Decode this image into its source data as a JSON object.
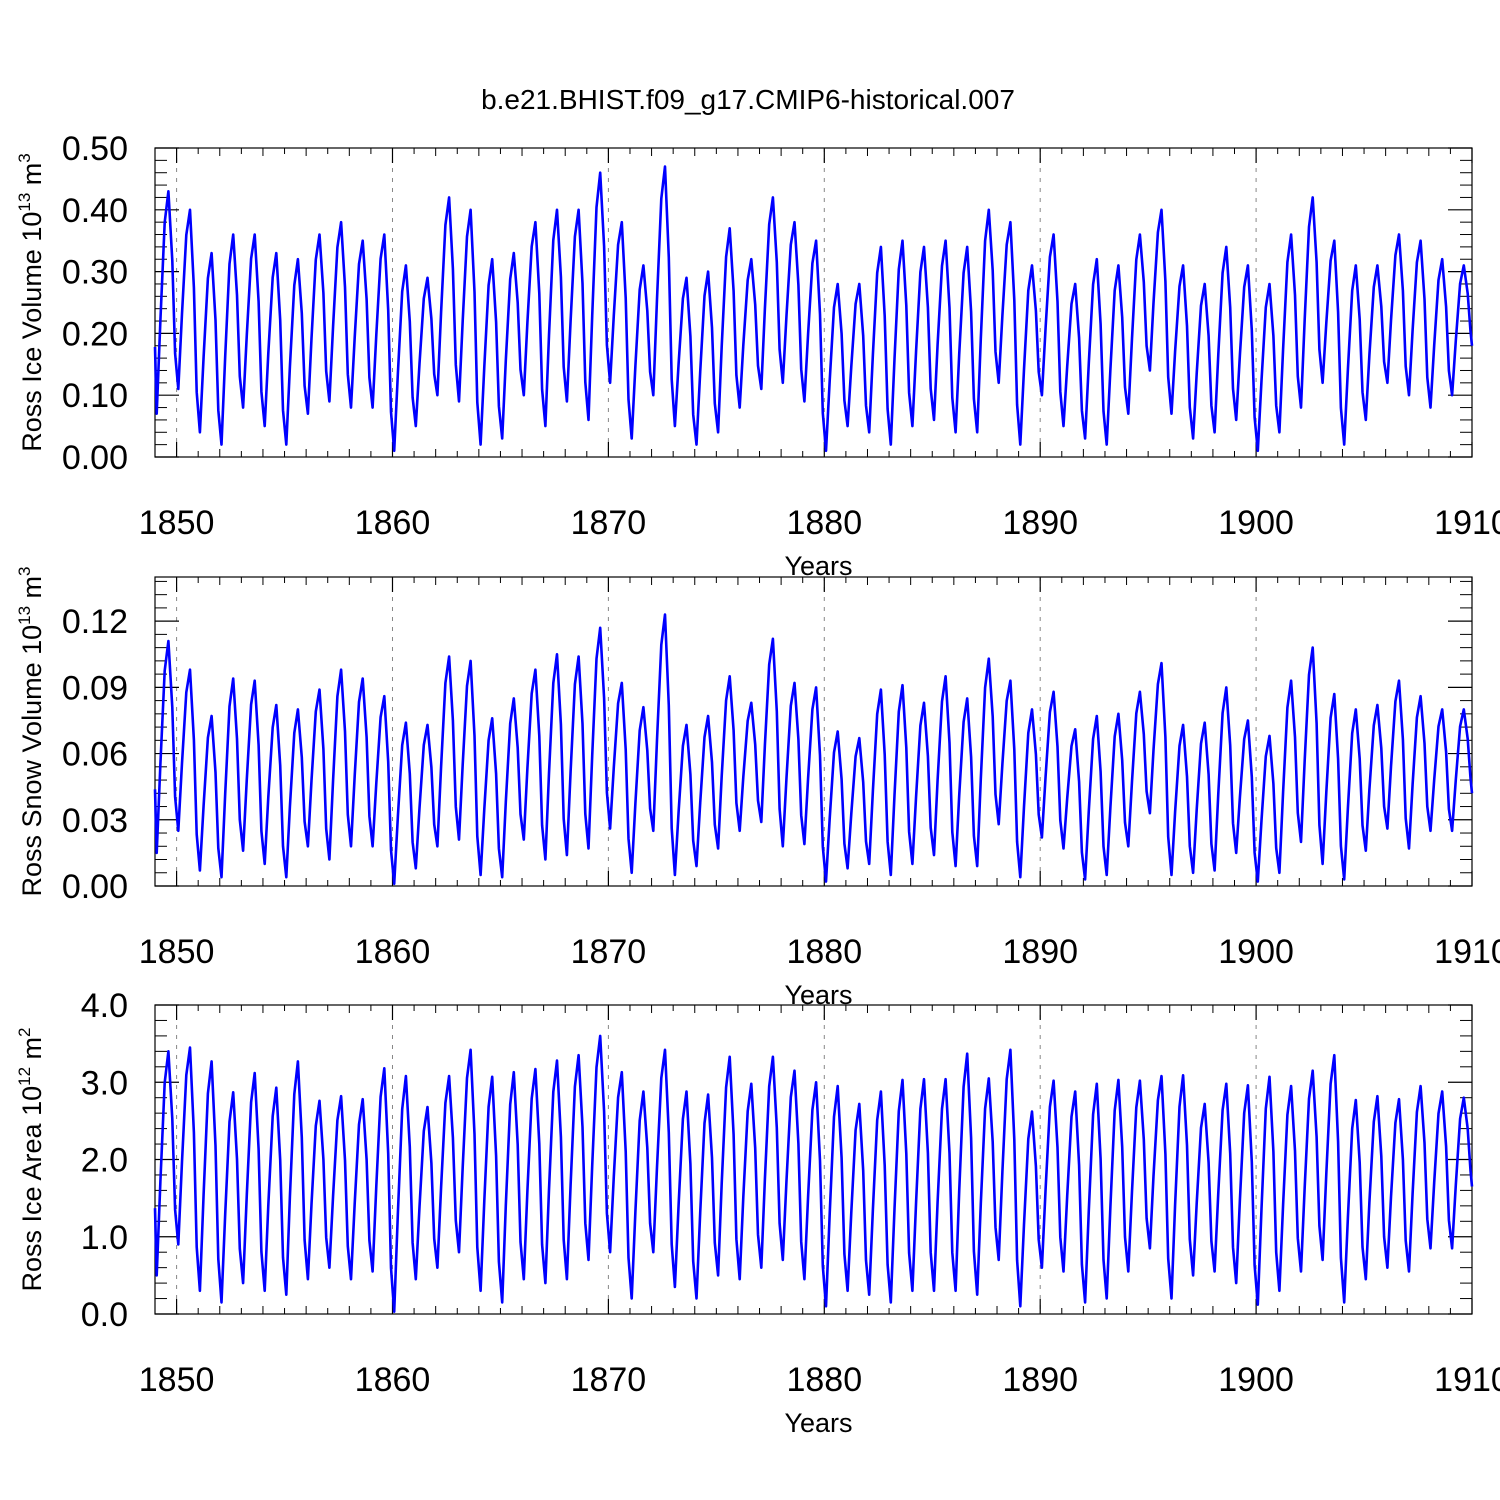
{
  "figure": {
    "title": "b.e21.BHIST.f09_g17.CMIP6-historical.007"
  },
  "colors": {
    "series": "#0000ff",
    "axes": "#000000",
    "gridlines": "#888888"
  },
  "chart_data": [
    {
      "type": "line",
      "title": "",
      "xlabel": "Years",
      "ylabel": {
        "base": "Ross Ice Volume 10",
        "exponent": "13",
        "unit": " m",
        "unit_exponent": "3"
      },
      "xlim": [
        1849,
        1910
      ],
      "ylim": [
        0,
        0.5
      ],
      "x_ticks": [
        1850,
        1860,
        1870,
        1880,
        1890,
        1900,
        1910
      ],
      "x_tick_labels": [
        "1850",
        "1860",
        "1870",
        "1880",
        "1890",
        "1900",
        "1910"
      ],
      "y_ticks": [
        0,
        0.1,
        0.2,
        0.3,
        0.4,
        0.5
      ],
      "y_tick_labels": [
        "0.00",
        "0.10",
        "0.20",
        "0.30",
        "0.40",
        "0.50"
      ],
      "series": [
        {
          "name": "Ross Ice Volume",
          "start_year": 1849,
          "annual_max": [
            0.43,
            0.4,
            0.33,
            0.36,
            0.36,
            0.33,
            0.32,
            0.36,
            0.38,
            0.35,
            0.36,
            0.31,
            0.29,
            0.42,
            0.4,
            0.32,
            0.33,
            0.38,
            0.4,
            0.4,
            0.46,
            0.38,
            0.31,
            0.47,
            0.29,
            0.3,
            0.37,
            0.32,
            0.42,
            0.38,
            0.35,
            0.28,
            0.28,
            0.34,
            0.35,
            0.34,
            0.35,
            0.34,
            0.4,
            0.38,
            0.31,
            0.36,
            0.28,
            0.32,
            0.31,
            0.36,
            0.4,
            0.31,
            0.28,
            0.34,
            0.31,
            0.28,
            0.36,
            0.42,
            0.35,
            0.31,
            0.31,
            0.36,
            0.35,
            0.32,
            0.31
          ],
          "annual_min": [
            0.07,
            0.11,
            0.04,
            0.02,
            0.08,
            0.05,
            0.02,
            0.07,
            0.09,
            0.08,
            0.08,
            0.01,
            0.05,
            0.1,
            0.09,
            0.02,
            0.03,
            0.1,
            0.05,
            0.09,
            0.06,
            0.12,
            0.03,
            0.1,
            0.05,
            0.02,
            0.04,
            0.08,
            0.11,
            0.12,
            0.09,
            0.01,
            0.05,
            0.04,
            0.02,
            0.05,
            0.06,
            0.04,
            0.04,
            0.12,
            0.02,
            0.1,
            0.05,
            0.03,
            0.02,
            0.07,
            0.14,
            0.07,
            0.03,
            0.04,
            0.06,
            0.01,
            0.04,
            0.08,
            0.12,
            0.02,
            0.06,
            0.12,
            0.1,
            0.08,
            0.1
          ],
          "final_value": 0.18
        }
      ]
    },
    {
      "type": "line",
      "title": "",
      "xlabel": "Years",
      "ylabel": {
        "base": "Ross Snow Volume 10",
        "exponent": "13",
        "unit": " m",
        "unit_exponent": "3"
      },
      "xlim": [
        1849,
        1910
      ],
      "ylim": [
        0,
        0.14
      ],
      "x_ticks": [
        1850,
        1860,
        1870,
        1880,
        1890,
        1900,
        1910
      ],
      "x_tick_labels": [
        "1850",
        "1860",
        "1870",
        "1880",
        "1890",
        "1900",
        "1910"
      ],
      "y_ticks": [
        0,
        0.03,
        0.06,
        0.09,
        0.12
      ],
      "y_tick_labels": [
        "0.00",
        "0.03",
        "0.06",
        "0.09",
        "0.12"
      ],
      "series": [
        {
          "name": "Ross Snow Volume",
          "start_year": 1849,
          "annual_max": [
            0.111,
            0.098,
            0.077,
            0.094,
            0.093,
            0.082,
            0.08,
            0.089,
            0.098,
            0.094,
            0.086,
            0.074,
            0.073,
            0.104,
            0.102,
            0.076,
            0.085,
            0.098,
            0.105,
            0.104,
            0.117,
            0.092,
            0.081,
            0.123,
            0.073,
            0.077,
            0.095,
            0.083,
            0.112,
            0.092,
            0.09,
            0.07,
            0.067,
            0.089,
            0.091,
            0.083,
            0.095,
            0.085,
            0.103,
            0.093,
            0.08,
            0.088,
            0.071,
            0.077,
            0.078,
            0.088,
            0.101,
            0.073,
            0.074,
            0.09,
            0.075,
            0.068,
            0.093,
            0.108,
            0.087,
            0.08,
            0.082,
            0.093,
            0.086,
            0.08,
            0.08
          ],
          "annual_min": [
            0.015,
            0.025,
            0.007,
            0.004,
            0.016,
            0.01,
            0.004,
            0.018,
            0.012,
            0.018,
            0.018,
            0.001,
            0.008,
            0.018,
            0.021,
            0.005,
            0.004,
            0.021,
            0.012,
            0.014,
            0.017,
            0.026,
            0.006,
            0.025,
            0.005,
            0.009,
            0.017,
            0.025,
            0.029,
            0.018,
            0.019,
            0.002,
            0.008,
            0.01,
            0.005,
            0.01,
            0.014,
            0.009,
            0.009,
            0.028,
            0.004,
            0.022,
            0.017,
            0.003,
            0.005,
            0.018,
            0.033,
            0.005,
            0.006,
            0.007,
            0.015,
            0.002,
            0.006,
            0.02,
            0.01,
            0.003,
            0.016,
            0.026,
            0.017,
            0.025,
            0.025
          ],
          "final_value": 0.042
        }
      ]
    },
    {
      "type": "line",
      "title": "",
      "xlabel": "Years",
      "ylabel": {
        "base": "Ross Ice Area 10",
        "exponent": "12",
        "unit": " m",
        "unit_exponent": "2"
      },
      "xlim": [
        1849,
        1910
      ],
      "ylim": [
        0,
        4
      ],
      "x_ticks": [
        1850,
        1860,
        1870,
        1880,
        1890,
        1900,
        1910
      ],
      "x_tick_labels": [
        "1850",
        "1860",
        "1870",
        "1880",
        "1890",
        "1900",
        "1910"
      ],
      "y_ticks": [
        0,
        1,
        2,
        3,
        4
      ],
      "y_tick_labels": [
        "0.0",
        "1.0",
        "2.0",
        "3.0",
        "4.0"
      ],
      "series": [
        {
          "name": "Ross Ice Area",
          "start_year": 1849,
          "annual_max": [
            3.4,
            3.45,
            3.27,
            2.87,
            3.12,
            2.93,
            3.27,
            2.76,
            2.82,
            2.78,
            3.18,
            3.08,
            2.68,
            3.08,
            3.42,
            3.07,
            3.13,
            3.17,
            3.28,
            3.35,
            3.6,
            3.13,
            2.88,
            3.42,
            2.88,
            2.84,
            3.33,
            2.98,
            3.33,
            3.15,
            3.0,
            2.95,
            2.72,
            2.88,
            3.03,
            3.04,
            3.04,
            3.37,
            3.05,
            3.42,
            2.62,
            3.02,
            2.88,
            2.98,
            3.03,
            3.02,
            3.08,
            3.09,
            2.72,
            2.98,
            2.96,
            3.07,
            2.95,
            3.15,
            3.35,
            2.77,
            2.82,
            2.78,
            2.95,
            2.88,
            2.8
          ],
          "annual_min": [
            0.5,
            0.9,
            0.3,
            0.15,
            0.4,
            0.3,
            0.25,
            0.45,
            0.6,
            0.45,
            0.55,
            0.03,
            0.45,
            0.6,
            0.8,
            0.3,
            0.15,
            0.45,
            0.4,
            0.45,
            0.7,
            0.8,
            0.2,
            0.8,
            0.35,
            0.2,
            0.5,
            0.45,
            0.6,
            0.7,
            0.45,
            0.1,
            0.3,
            0.25,
            0.15,
            0.3,
            0.3,
            0.3,
            0.25,
            0.7,
            0.1,
            0.6,
            0.55,
            0.15,
            0.2,
            0.55,
            0.85,
            0.2,
            0.5,
            0.55,
            0.4,
            0.12,
            0.3,
            0.55,
            0.7,
            0.15,
            0.45,
            0.6,
            0.55,
            0.85,
            0.85
          ],
          "final_value": 1.65
        }
      ]
    }
  ]
}
